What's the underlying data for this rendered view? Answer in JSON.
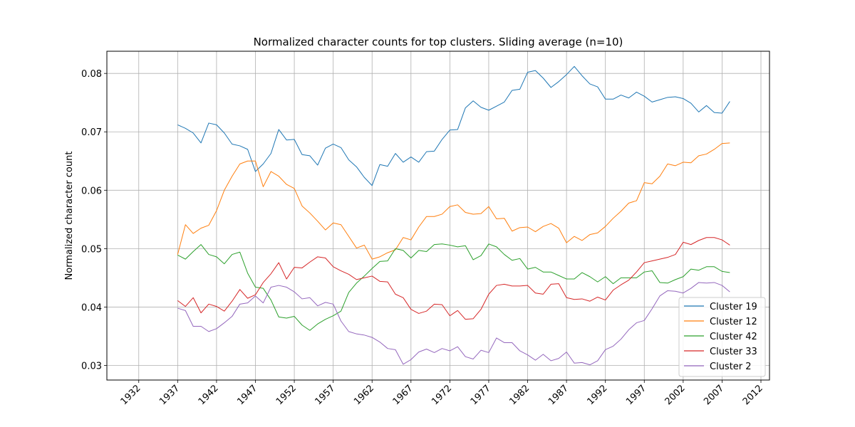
{
  "chart_data": {
    "type": "line",
    "title": "Normalized character counts for top clusters. Sliding average (n=10)",
    "xlabel": "",
    "ylabel": "Normalized character count",
    "xlim": [
      1927.9,
      2013.1
    ],
    "ylim": [
      0.0275,
      0.0838
    ],
    "x_ticks": [
      1932,
      1937,
      1942,
      1947,
      1952,
      1957,
      1962,
      1967,
      1972,
      1977,
      1982,
      1987,
      1992,
      1997,
      2002,
      2007,
      2012
    ],
    "y_ticks": [
      0.03,
      0.04,
      0.05,
      0.06,
      0.07,
      0.08
    ],
    "y_tick_labels": [
      "0.03",
      "0.04",
      "0.05",
      "0.06",
      "0.07",
      "0.08"
    ],
    "grid": true,
    "legend_position": "lower-right",
    "x": [
      1937,
      1938,
      1939,
      1940,
      1941,
      1942,
      1943,
      1944,
      1945,
      1946,
      1947,
      1948,
      1949,
      1950,
      1951,
      1952,
      1953,
      1954,
      1955,
      1956,
      1957,
      1958,
      1959,
      1960,
      1961,
      1962,
      1963,
      1964,
      1965,
      1966,
      1967,
      1968,
      1969,
      1970,
      1971,
      1972,
      1973,
      1974,
      1975,
      1976,
      1977,
      1978,
      1979,
      1980,
      1981,
      1982,
      1983,
      1984,
      1985,
      1986,
      1987,
      1988,
      1989,
      1990,
      1991,
      1992,
      1993,
      1994,
      1995,
      1996,
      1997,
      1998,
      1999,
      2000,
      2001,
      2002,
      2003,
      2004,
      2005,
      2006,
      2007,
      2008
    ],
    "series": [
      {
        "name": "Cluster 19",
        "color": "#1f77b4",
        "values": [
          0.0712,
          0.0706,
          0.0698,
          0.0681,
          0.0715,
          0.0712,
          0.0698,
          0.0679,
          0.0676,
          0.067,
          0.0632,
          0.0645,
          0.0663,
          0.0704,
          0.0686,
          0.0687,
          0.0661,
          0.0659,
          0.0643,
          0.0672,
          0.0679,
          0.0673,
          0.0652,
          0.064,
          0.0622,
          0.0608,
          0.0644,
          0.0641,
          0.0663,
          0.0648,
          0.0657,
          0.0648,
          0.0666,
          0.0667,
          0.0687,
          0.0703,
          0.0704,
          0.0741,
          0.0753,
          0.0742,
          0.0737,
          0.0744,
          0.0751,
          0.0771,
          0.0773,
          0.0802,
          0.0805,
          0.0792,
          0.0776,
          0.0786,
          0.0798,
          0.0812,
          0.0796,
          0.0782,
          0.0777,
          0.0756,
          0.0756,
          0.0763,
          0.0758,
          0.0768,
          0.0761,
          0.0751,
          0.0755,
          0.0759,
          0.076,
          0.0757,
          0.0749,
          0.0734,
          0.0745,
          0.0733,
          0.0732,
          0.0752
        ]
      },
      {
        "name": "Cluster 12",
        "color": "#ff7f0e",
        "values": [
          0.049,
          0.0541,
          0.0526,
          0.0535,
          0.054,
          0.0565,
          0.06,
          0.0624,
          0.0645,
          0.065,
          0.065,
          0.0606,
          0.0632,
          0.0624,
          0.061,
          0.0603,
          0.0573,
          0.0561,
          0.0547,
          0.0532,
          0.0544,
          0.0541,
          0.0521,
          0.0501,
          0.0506,
          0.0482,
          0.0486,
          0.0493,
          0.0498,
          0.0519,
          0.0515,
          0.0537,
          0.0555,
          0.0555,
          0.0559,
          0.0572,
          0.0575,
          0.0562,
          0.0559,
          0.056,
          0.0572,
          0.0551,
          0.0552,
          0.053,
          0.0536,
          0.0537,
          0.0529,
          0.0538,
          0.0543,
          0.0535,
          0.051,
          0.0521,
          0.0514,
          0.0524,
          0.0527,
          0.0538,
          0.0552,
          0.0564,
          0.0578,
          0.0582,
          0.0613,
          0.0611,
          0.0624,
          0.0645,
          0.0642,
          0.0648,
          0.0647,
          0.0659,
          0.0662,
          0.067,
          0.068,
          0.0681
        ]
      },
      {
        "name": "Cluster 42",
        "color": "#2ca02c",
        "values": [
          0.0489,
          0.0482,
          0.0495,
          0.0507,
          0.049,
          0.0486,
          0.0474,
          0.049,
          0.0494,
          0.0458,
          0.0434,
          0.0432,
          0.0412,
          0.0383,
          0.0381,
          0.0384,
          0.0369,
          0.036,
          0.0371,
          0.0379,
          0.0385,
          0.0393,
          0.0425,
          0.0441,
          0.0453,
          0.0466,
          0.0478,
          0.0479,
          0.05,
          0.0497,
          0.0484,
          0.0497,
          0.0495,
          0.0507,
          0.0508,
          0.0506,
          0.0503,
          0.0505,
          0.0481,
          0.0488,
          0.0508,
          0.0503,
          0.049,
          0.048,
          0.0483,
          0.0465,
          0.0468,
          0.046,
          0.046,
          0.0454,
          0.0448,
          0.0448,
          0.0459,
          0.0452,
          0.0443,
          0.0452,
          0.044,
          0.045,
          0.045,
          0.045,
          0.046,
          0.0462,
          0.0442,
          0.0441,
          0.0447,
          0.0452,
          0.0465,
          0.0463,
          0.0469,
          0.0469,
          0.0461,
          0.0459
        ]
      },
      {
        "name": "Cluster 33",
        "color": "#d62728",
        "values": [
          0.0411,
          0.0401,
          0.0416,
          0.039,
          0.0405,
          0.0401,
          0.0393,
          0.041,
          0.043,
          0.0415,
          0.0421,
          0.0442,
          0.0457,
          0.0476,
          0.0448,
          0.0468,
          0.0467,
          0.0477,
          0.0486,
          0.0484,
          0.0469,
          0.0462,
          0.0456,
          0.0447,
          0.045,
          0.0453,
          0.0444,
          0.0443,
          0.0422,
          0.0416,
          0.0396,
          0.0389,
          0.0393,
          0.0405,
          0.0404,
          0.0385,
          0.0394,
          0.0379,
          0.038,
          0.0396,
          0.0422,
          0.0437,
          0.0439,
          0.0436,
          0.0436,
          0.0437,
          0.0424,
          0.0422,
          0.0439,
          0.044,
          0.0416,
          0.0413,
          0.0414,
          0.041,
          0.0417,
          0.0412,
          0.0429,
          0.0438,
          0.0446,
          0.046,
          0.0476,
          0.0479,
          0.0482,
          0.0485,
          0.049,
          0.0511,
          0.0507,
          0.0514,
          0.0519,
          0.0519,
          0.0515,
          0.0506
        ]
      },
      {
        "name": "Cluster 2",
        "color": "#9467bd",
        "values": [
          0.0398,
          0.0394,
          0.0367,
          0.0367,
          0.0358,
          0.0363,
          0.0373,
          0.0384,
          0.0405,
          0.0407,
          0.0419,
          0.0407,
          0.0434,
          0.0437,
          0.0434,
          0.0426,
          0.0414,
          0.0416,
          0.0402,
          0.0408,
          0.0405,
          0.0376,
          0.0358,
          0.0354,
          0.0352,
          0.0348,
          0.034,
          0.0329,
          0.0327,
          0.0302,
          0.031,
          0.0323,
          0.0328,
          0.0322,
          0.0329,
          0.0325,
          0.0332,
          0.0315,
          0.0311,
          0.0326,
          0.0322,
          0.0347,
          0.0339,
          0.0339,
          0.0325,
          0.0318,
          0.0309,
          0.0319,
          0.0308,
          0.0312,
          0.0323,
          0.0304,
          0.0305,
          0.0301,
          0.0308,
          0.0327,
          0.0333,
          0.0345,
          0.0361,
          0.0373,
          0.0377,
          0.0397,
          0.0419,
          0.0428,
          0.0427,
          0.0424,
          0.0432,
          0.0442,
          0.0441,
          0.0442,
          0.0437,
          0.0426
        ]
      }
    ]
  }
}
